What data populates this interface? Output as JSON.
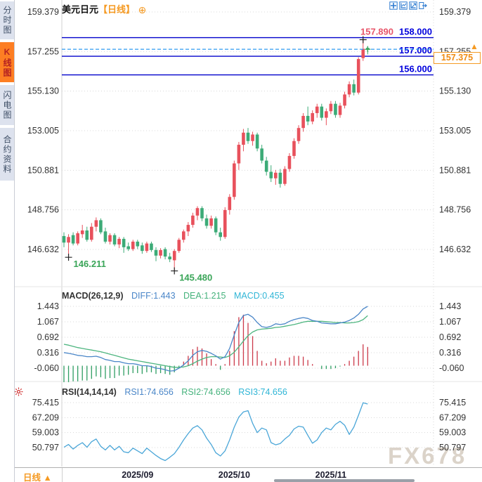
{
  "colors": {
    "up": "#e8515c",
    "down": "#3cab77",
    "hist_up": "#cc3a4a",
    "hist_down": "#2f9e63",
    "diff_line": "#4a86c8",
    "dea_line": "#4db57f",
    "rsi_line": "#4aa6d8",
    "nav_line": "#0000cc",
    "nav_label": "#0000dd",
    "high_label": "#e8556a",
    "low_label": "#3aa558",
    "current_line": "#2f9bf0",
    "tag": "#f59a23",
    "grid": "#d8d8d8",
    "axis_text": "#333333",
    "watermark": "#cfc5b8"
  },
  "window": {
    "title": "美元日元",
    "period_tag": "【日线】",
    "add_icon": "⊕"
  },
  "sidebar": {
    "tabs": [
      {
        "label": "分时图",
        "active": false
      },
      {
        "label": "K线图",
        "active": true
      },
      {
        "label": "闪电图",
        "active": false
      },
      {
        "label": "合约资料",
        "active": false
      }
    ]
  },
  "toolbar": {
    "icons": [
      "crosshair-icon",
      "axis-scale-icon",
      "trend-line-icon",
      "exit-fullscreen-icon"
    ]
  },
  "price_tag": {
    "label": "157.375",
    "arrow": "▲"
  },
  "macd_header": {
    "name": "MACD(26,12,9)",
    "diff": "DIFF:1.443",
    "dea": "DEA:1.215",
    "macd": "MACD:0.455"
  },
  "rsi_header": {
    "name": "RSI(14,14,14)",
    "rsi1": "RSI1:74.656",
    "rsi2": "RSI2:74.656",
    "rsi3": "RSI3:74.656"
  },
  "bottom": {
    "period_label": "日线",
    "arrow": "▲"
  },
  "watermark": "FX678",
  "chart_data": {
    "type": "candlestick",
    "title": "美元日元 日线",
    "price_axis": [
      159.379,
      157.255,
      155.13,
      153.005,
      150.881,
      148.756,
      146.632
    ],
    "levels": [
      158.0,
      157.0,
      156.0
    ],
    "level_labels": [
      "158.000",
      "157.000",
      "156.000"
    ],
    "current_price": 157.375,
    "high_annotation": {
      "index": 66,
      "value": 157.89,
      "label": "157.890"
    },
    "low_annotations": [
      {
        "index": 2,
        "value": 146.211,
        "label": "146.211"
      },
      {
        "index": 25,
        "value": 145.48,
        "label": "145.480"
      }
    ],
    "x_dates": [
      {
        "label": "2025/09",
        "index": 17
      },
      {
        "label": "2025/10",
        "index": 38
      },
      {
        "label": "2025/11",
        "index": 59
      }
    ],
    "candles": [
      [
        147.35,
        147.55,
        146.75,
        147.0
      ],
      [
        147.0,
        147.45,
        146.211,
        147.3
      ],
      [
        147.4,
        147.55,
        146.85,
        146.95
      ],
      [
        146.95,
        147.6,
        146.85,
        147.5
      ],
      [
        147.45,
        147.95,
        147.25,
        147.65
      ],
      [
        147.65,
        147.85,
        147.05,
        147.15
      ],
      [
        147.15,
        148.05,
        147.05,
        147.85
      ],
      [
        147.85,
        148.35,
        147.6,
        148.2
      ],
      [
        148.2,
        148.3,
        147.45,
        147.55
      ],
      [
        147.6,
        147.8,
        146.95,
        147.05
      ],
      [
        147.05,
        147.5,
        146.9,
        147.4
      ],
      [
        147.4,
        147.5,
        146.8,
        146.9
      ],
      [
        146.9,
        147.3,
        146.7,
        147.2
      ],
      [
        147.2,
        147.3,
        146.45,
        146.75
      ],
      [
        146.8,
        147.0,
        146.55,
        146.65
      ],
      [
        146.65,
        147.15,
        146.55,
        147.05
      ],
      [
        147.05,
        147.15,
        146.65,
        146.8
      ],
      [
        146.85,
        147.0,
        146.4,
        146.55
      ],
      [
        146.55,
        147.05,
        146.45,
        146.95
      ],
      [
        146.95,
        147.05,
        146.5,
        146.6
      ],
      [
        146.6,
        146.75,
        146.0,
        146.3
      ],
      [
        146.3,
        146.7,
        146.15,
        146.6
      ],
      [
        146.65,
        146.75,
        146.1,
        146.25
      ],
      [
        146.25,
        146.45,
        145.95,
        146.1
      ],
      [
        146.05,
        146.65,
        145.48,
        146.55
      ],
      [
        146.55,
        147.25,
        146.45,
        147.15
      ],
      [
        147.15,
        147.7,
        147.0,
        147.6
      ],
      [
        147.6,
        148.1,
        147.35,
        147.95
      ],
      [
        147.95,
        148.6,
        147.8,
        148.45
      ],
      [
        148.45,
        148.95,
        148.2,
        148.85
      ],
      [
        148.85,
        148.95,
        148.15,
        148.3
      ],
      [
        148.3,
        148.5,
        147.75,
        147.9
      ],
      [
        147.9,
        148.45,
        147.75,
        148.3
      ],
      [
        148.3,
        148.4,
        147.4,
        147.55
      ],
      [
        147.55,
        147.8,
        147.1,
        147.3
      ],
      [
        147.3,
        148.9,
        147.2,
        148.75
      ],
      [
        148.75,
        149.6,
        148.5,
        149.45
      ],
      [
        149.45,
        151.4,
        149.3,
        151.25
      ],
      [
        151.25,
        152.4,
        150.9,
        152.25
      ],
      [
        152.25,
        153.1,
        151.9,
        152.9
      ],
      [
        152.9,
        153.15,
        152.3,
        152.45
      ],
      [
        152.45,
        152.95,
        152.2,
        152.8
      ],
      [
        152.8,
        152.9,
        151.9,
        152.05
      ],
      [
        152.05,
        152.25,
        151.25,
        151.4
      ],
      [
        151.4,
        151.6,
        150.6,
        150.8
      ],
      [
        150.8,
        151.15,
        150.25,
        150.45
      ],
      [
        150.45,
        150.9,
        150.1,
        150.75
      ],
      [
        150.75,
        150.95,
        149.95,
        150.15
      ],
      [
        150.15,
        151.1,
        150.05,
        150.95
      ],
      [
        150.95,
        151.8,
        150.8,
        151.65
      ],
      [
        151.65,
        152.6,
        151.5,
        152.45
      ],
      [
        152.45,
        153.3,
        152.3,
        153.15
      ],
      [
        153.15,
        153.95,
        152.95,
        153.8
      ],
      [
        153.8,
        154.3,
        153.3,
        153.5
      ],
      [
        153.5,
        154.1,
        153.35,
        153.95
      ],
      [
        153.95,
        154.45,
        153.7,
        154.3
      ],
      [
        154.3,
        154.45,
        153.55,
        153.7
      ],
      [
        153.7,
        154.2,
        153.3,
        154.05
      ],
      [
        154.05,
        154.6,
        153.9,
        154.45
      ],
      [
        154.45,
        154.6,
        153.7,
        153.85
      ],
      [
        153.85,
        154.5,
        153.7,
        154.35
      ],
      [
        154.35,
        155.1,
        154.2,
        154.95
      ],
      [
        154.95,
        155.65,
        154.8,
        155.5
      ],
      [
        155.5,
        155.75,
        154.9,
        155.05
      ],
      [
        155.05,
        156.95,
        154.95,
        156.85
      ],
      [
        156.9,
        157.89,
        156.75,
        157.4
      ],
      [
        157.45,
        157.55,
        157.1,
        157.375
      ]
    ],
    "macd": {
      "params": "26,12,9",
      "axis": [
        1.443,
        1.067,
        0.692,
        0.316,
        -0.06
      ],
      "last": {
        "diff": 1.443,
        "dea": 1.215,
        "macd": 0.455
      },
      "diff": [
        0.32,
        0.3,
        0.28,
        0.25,
        0.24,
        0.22,
        0.22,
        0.23,
        0.2,
        0.15,
        0.13,
        0.1,
        0.1,
        0.07,
        0.05,
        0.05,
        0.03,
        0.0,
        0.0,
        -0.02,
        -0.06,
        -0.07,
        -0.1,
        -0.13,
        -0.12,
        -0.06,
        0.02,
        0.12,
        0.25,
        0.34,
        0.37,
        0.35,
        0.3,
        0.24,
        0.16,
        0.22,
        0.42,
        0.75,
        1.05,
        1.22,
        1.25,
        1.18,
        1.05,
        0.95,
        0.93,
        0.96,
        1.02,
        1.0,
        1.02,
        1.08,
        1.12,
        1.15,
        1.17,
        1.15,
        1.1,
        1.08,
        1.04,
        1.03,
        1.02,
        1.02,
        1.04,
        1.06,
        1.1,
        1.16,
        1.25,
        1.38,
        1.443
      ],
      "dea": [
        0.52,
        0.5,
        0.47,
        0.44,
        0.42,
        0.4,
        0.38,
        0.36,
        0.34,
        0.31,
        0.28,
        0.25,
        0.22,
        0.19,
        0.16,
        0.14,
        0.12,
        0.1,
        0.08,
        0.06,
        0.04,
        0.02,
        0.0,
        -0.02,
        -0.04,
        -0.04,
        -0.03,
        0.0,
        0.05,
        0.11,
        0.16,
        0.2,
        0.22,
        0.22,
        0.21,
        0.2,
        0.24,
        0.33,
        0.46,
        0.6,
        0.73,
        0.82,
        0.87,
        0.89,
        0.9,
        0.91,
        0.93,
        0.94,
        0.96,
        0.98,
        1.0,
        1.03,
        1.06,
        1.08,
        1.08,
        1.08,
        1.08,
        1.07,
        1.06,
        1.05,
        1.05,
        1.04,
        1.04,
        1.05,
        1.07,
        1.12,
        1.215
      ]
    },
    "rsi": {
      "params": "14,14,14",
      "axis": [
        75.415,
        67.209,
        59.003,
        50.797
      ],
      "last": {
        "rsi1": 74.656,
        "rsi2": 74.656,
        "rsi3": 74.656
      },
      "values": [
        51.0,
        52.5,
        50.0,
        52.0,
        53.5,
        51.0,
        54.0,
        55.5,
        51.5,
        49.5,
        52.0,
        49.5,
        51.5,
        48.5,
        48.0,
        50.5,
        49.0,
        47.5,
        50.5,
        48.5,
        46.5,
        44.8,
        43.7,
        45.5,
        47.5,
        51.0,
        55.0,
        58.5,
        61.5,
        62.8,
        60.5,
        56.0,
        52.5,
        48.0,
        46.2,
        49.0,
        55.0,
        62.0,
        67.5,
        70.3,
        71.0,
        64.0,
        59.0,
        61.5,
        60.5,
        53.5,
        52.3,
        53.0,
        55.5,
        57.5,
        61.0,
        62.5,
        62.0,
        57.5,
        53.2,
        55.0,
        59.0,
        61.5,
        60.5,
        63.5,
        65.2,
        63.0,
        58.0,
        62.0,
        68.5,
        75.35,
        74.656
      ]
    }
  }
}
